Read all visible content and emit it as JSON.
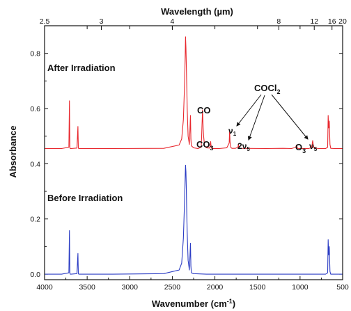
{
  "chart_data": {
    "type": "line",
    "title": "",
    "xlabel": "Wavenumber (cm",
    "xlabel_sup": "-1",
    "xlabel_tail": ")",
    "x2label": "Wavelength (µm)",
    "ylabel": "Absorbance",
    "xlim": [
      4000,
      500
    ],
    "ylim": [
      -0.02,
      0.9
    ],
    "x_ticks": [
      4000,
      3500,
      3000,
      2500,
      2000,
      1500,
      1000,
      500
    ],
    "y_ticks": [
      0.0,
      0.2,
      0.4,
      0.6,
      0.8
    ],
    "x2_ticks": [
      {
        "label": "2.5",
        "wavelength_um": 2.5
      },
      {
        "label": "3",
        "wavelength_um": 3
      },
      {
        "label": "4",
        "wavelength_um": 4
      },
      {
        "label": "8",
        "wavelength_um": 8
      },
      {
        "label": "12",
        "wavelength_um": 12
      },
      {
        "label": "16",
        "wavelength_um": 16
      },
      {
        "label": "20",
        "wavelength_um": 20
      }
    ],
    "series": [
      {
        "name": "After Irradiation",
        "color": "#e8282e",
        "baseline": 0.455,
        "x": [
          4000,
          3800,
          3715,
          3708,
          3703,
          3698,
          3690,
          3620,
          3608,
          3603,
          3598,
          3585,
          3200,
          2600,
          2420,
          2390,
          2370,
          2355,
          2348,
          2345,
          2340,
          2335,
          2330,
          2325,
          2315,
          2300,
          2287,
          2282,
          2276,
          2250,
          2200,
          2160,
          2145,
          2138,
          2132,
          2122,
          2100,
          2060,
          2050,
          2044,
          2038,
          2025,
          1950,
          1860,
          1832,
          1827,
          1822,
          1815,
          1800,
          1760,
          1730,
          1724,
          1718,
          1705,
          1400,
          1200,
          1100,
          1050,
          1042,
          1035,
          1030,
          1010,
          900,
          870,
          858,
          852,
          846,
          836,
          780,
          700,
          676,
          670,
          664,
          657,
          649,
          640,
          600,
          500
        ],
        "y": [
          0.455,
          0.455,
          0.46,
          0.628,
          0.46,
          0.455,
          0.455,
          0.457,
          0.535,
          0.457,
          0.455,
          0.455,
          0.455,
          0.456,
          0.468,
          0.49,
          0.56,
          0.7,
          0.8,
          0.86,
          0.82,
          0.75,
          0.68,
          0.6,
          0.5,
          0.47,
          0.575,
          0.49,
          0.465,
          0.458,
          0.455,
          0.46,
          0.595,
          0.53,
          0.5,
          0.465,
          0.458,
          0.457,
          0.48,
          0.46,
          0.456,
          0.455,
          0.455,
          0.458,
          0.475,
          0.52,
          0.48,
          0.46,
          0.456,
          0.456,
          0.46,
          0.47,
          0.46,
          0.456,
          0.455,
          0.456,
          0.455,
          0.46,
          0.468,
          0.46,
          0.456,
          0.455,
          0.455,
          0.458,
          0.47,
          0.484,
          0.47,
          0.457,
          0.455,
          0.455,
          0.46,
          0.575,
          0.53,
          0.555,
          0.47,
          0.456,
          0.455,
          0.455
        ]
      },
      {
        "name": "Before Irradiation",
        "color": "#2b3cc4",
        "baseline": 0.0,
        "x": [
          4000,
          3800,
          3715,
          3708,
          3703,
          3698,
          3690,
          3620,
          3608,
          3603,
          3598,
          3585,
          3200,
          2600,
          2420,
          2390,
          2370,
          2355,
          2348,
          2345,
          2340,
          2335,
          2330,
          2325,
          2315,
          2300,
          2287,
          2282,
          2276,
          2250,
          2100,
          1600,
          1000,
          800,
          700,
          676,
          670,
          664,
          657,
          649,
          640,
          600,
          500
        ],
        "y": [
          0.0,
          0.0,
          0.005,
          0.158,
          0.005,
          0.0,
          0.0,
          0.002,
          0.075,
          0.002,
          0.0,
          0.0,
          0.0,
          0.002,
          0.015,
          0.04,
          0.13,
          0.28,
          0.36,
          0.395,
          0.37,
          0.3,
          0.22,
          0.15,
          0.05,
          0.015,
          0.112,
          0.03,
          0.005,
          0.002,
          0.0,
          0.0,
          0.0,
          0.0,
          0.0,
          0.005,
          0.125,
          0.07,
          0.1,
          0.01,
          0.0,
          0.0,
          0.0
        ]
      }
    ],
    "annotations": {
      "after_label": "After Irradiation",
      "before_label": "Before Irradiation",
      "co": "CO",
      "co3_main": "CO",
      "co3_sub": "3",
      "cocl2_main": "COCl",
      "cocl2_sub": "2",
      "nu": "ν",
      "nu1_sub": "1",
      "two_nu5_prefix": "2",
      "nu5_sub": "5",
      "o3_main": "O",
      "o3_sub": "3"
    },
    "grid": false
  }
}
